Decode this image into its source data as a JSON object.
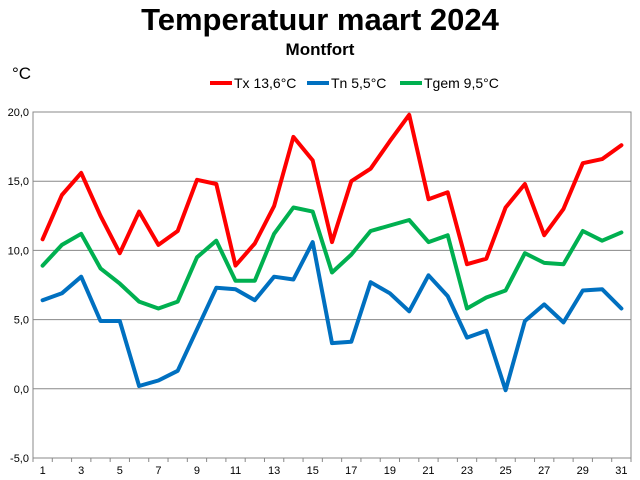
{
  "chart_data": {
    "type": "line",
    "title": "Temperatuur maart 2024",
    "subtitle": "Montfort",
    "unit_label": "°C",
    "ylim": [
      -5,
      20
    ],
    "yticks": [
      -5,
      0,
      5,
      10,
      15,
      20
    ],
    "ytick_labels": [
      "-5,0",
      "0,0",
      "5,0",
      "10,0",
      "15,0",
      "20,0"
    ],
    "xlim": [
      1,
      31
    ],
    "xticks": [
      1,
      3,
      5,
      7,
      9,
      11,
      13,
      15,
      17,
      19,
      21,
      23,
      25,
      27,
      29,
      31
    ],
    "grid": "horizontal",
    "legend_position": "top",
    "x": [
      1,
      2,
      3,
      4,
      5,
      6,
      7,
      8,
      9,
      10,
      11,
      12,
      13,
      14,
      15,
      16,
      17,
      18,
      19,
      20,
      21,
      22,
      23,
      24,
      25,
      26,
      27,
      28,
      29,
      30,
      31
    ],
    "series": [
      {
        "name": "Tx 13,6°C",
        "color": "#ff0000",
        "values": [
          10.8,
          14.0,
          15.6,
          12.5,
          9.8,
          12.8,
          10.4,
          11.4,
          15.1,
          14.8,
          8.9,
          10.5,
          13.2,
          18.2,
          16.5,
          10.6,
          15.0,
          15.9,
          17.9,
          19.8,
          13.7,
          14.2,
          9.0,
          9.4,
          13.1,
          14.8,
          11.1,
          13.0,
          16.3,
          16.6,
          17.6
        ]
      },
      {
        "name": "Tn 5,5°C",
        "color": "#0070c0",
        "values": [
          6.4,
          6.9,
          8.1,
          4.9,
          4.9,
          0.2,
          0.6,
          1.3,
          4.3,
          7.3,
          7.2,
          6.4,
          8.1,
          7.9,
          10.6,
          3.3,
          3.4,
          7.7,
          6.9,
          5.6,
          8.2,
          6.7,
          3.7,
          4.2,
          -0.1,
          4.9,
          6.1,
          4.8,
          7.1,
          7.2,
          5.8
        ]
      },
      {
        "name": "Tgem 9,5°C",
        "color": "#00b050",
        "values": [
          8.9,
          10.4,
          11.2,
          8.7,
          7.6,
          6.3,
          5.8,
          6.3,
          9.5,
          10.7,
          7.8,
          7.8,
          11.2,
          13.1,
          12.8,
          8.4,
          9.7,
          11.4,
          11.8,
          12.2,
          10.6,
          11.1,
          5.8,
          6.6,
          7.1,
          9.8,
          9.1,
          9.0,
          11.4,
          10.7,
          11.3
        ]
      }
    ]
  }
}
